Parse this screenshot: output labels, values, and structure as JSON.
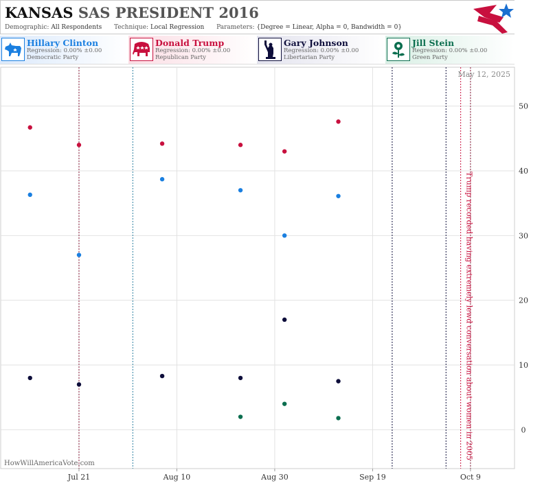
{
  "header": {
    "title_state": "KANSAS",
    "title_rest": "SAS PRESIDENT 2016",
    "demographic_label": "Demographic:",
    "demographic_value": "All Respondents",
    "technique_label": "Technique:",
    "technique_value": "Local Regression",
    "parameters_label": "Parameters:",
    "parameters_value": "{Degree = Linear, Alpha = 0, Bandwidth = 0}"
  },
  "candidates": [
    {
      "name": "Hillary Clinton",
      "regression": "Regression: 0.00% ±0.00",
      "party": "Democratic Party",
      "color": "#1a7fe0",
      "icon": "donkey-icon"
    },
    {
      "name": "Donald Trump",
      "regression": "Regression: 0.00% ±0.00",
      "party": "Republican Party",
      "color": "#c8103e",
      "icon": "elephant-icon"
    },
    {
      "name": "Gary Johnson",
      "regression": "Regression: 0.00% ±0.00",
      "party": "Libertarian Party",
      "color": "#0d0d3a",
      "icon": "statue-of-liberty-icon"
    },
    {
      "name": "Jill Stein",
      "regression": "Regression: 0.00% ±0.00",
      "party": "Green Party",
      "color": "#0b6e4f",
      "icon": "rose-icon"
    }
  ],
  "chart_data": {
    "type": "scatter",
    "date_label": "May 12, 2025",
    "watermark": "HowWillAmericaVote.com",
    "annotation": "Trump recorded having extremely lewd conversation about women in 2005",
    "x_ticks": [
      "Jul 21",
      "Aug 10",
      "Aug 30",
      "Sep 19",
      "Oct 9"
    ],
    "y_ticks": [
      0,
      10,
      20,
      30,
      40,
      50
    ],
    "xlim": [
      "2016-07-05",
      "2016-10-18"
    ],
    "ylim": [
      -6,
      56
    ],
    "grid": true,
    "event_lines": [
      {
        "date": "2016-07-21",
        "color": "#8b1a3a"
      },
      {
        "date": "2016-08-01",
        "color": "#2a7fa0"
      },
      {
        "date": "2016-09-23",
        "color": "#0d0d3a"
      },
      {
        "date": "2016-10-04",
        "color": "#0d0d3a"
      },
      {
        "date": "2016-10-07",
        "color": "#c8103e"
      },
      {
        "date": "2016-10-09",
        "color": "#8b1a3a"
      }
    ],
    "series": [
      {
        "name": "Hillary Clinton",
        "color": "#1a7fe0",
        "points": [
          {
            "x": "2016-07-11",
            "y": 36.3
          },
          {
            "x": "2016-07-21",
            "y": 27.0
          },
          {
            "x": "2016-08-07",
            "y": 38.7
          },
          {
            "x": "2016-08-23",
            "y": 37.0
          },
          {
            "x": "2016-09-01",
            "y": 30.0
          },
          {
            "x": "2016-09-12",
            "y": 36.1
          }
        ]
      },
      {
        "name": "Donald Trump",
        "color": "#c8103e",
        "points": [
          {
            "x": "2016-07-11",
            "y": 46.7
          },
          {
            "x": "2016-07-21",
            "y": 44.0
          },
          {
            "x": "2016-08-07",
            "y": 44.2
          },
          {
            "x": "2016-08-23",
            "y": 44.0
          },
          {
            "x": "2016-09-01",
            "y": 43.0
          },
          {
            "x": "2016-09-12",
            "y": 47.6
          }
        ]
      },
      {
        "name": "Gary Johnson",
        "color": "#0d0d3a",
        "points": [
          {
            "x": "2016-07-11",
            "y": 8.0
          },
          {
            "x": "2016-07-21",
            "y": 7.0
          },
          {
            "x": "2016-08-07",
            "y": 8.3
          },
          {
            "x": "2016-08-23",
            "y": 8.0
          },
          {
            "x": "2016-09-01",
            "y": 17.0
          },
          {
            "x": "2016-09-12",
            "y": 7.5
          }
        ]
      },
      {
        "name": "Jill Stein",
        "color": "#0b6e4f",
        "points": [
          {
            "x": "2016-08-23",
            "y": 2.0
          },
          {
            "x": "2016-09-01",
            "y": 4.0
          },
          {
            "x": "2016-09-12",
            "y": 1.8
          }
        ]
      }
    ]
  }
}
